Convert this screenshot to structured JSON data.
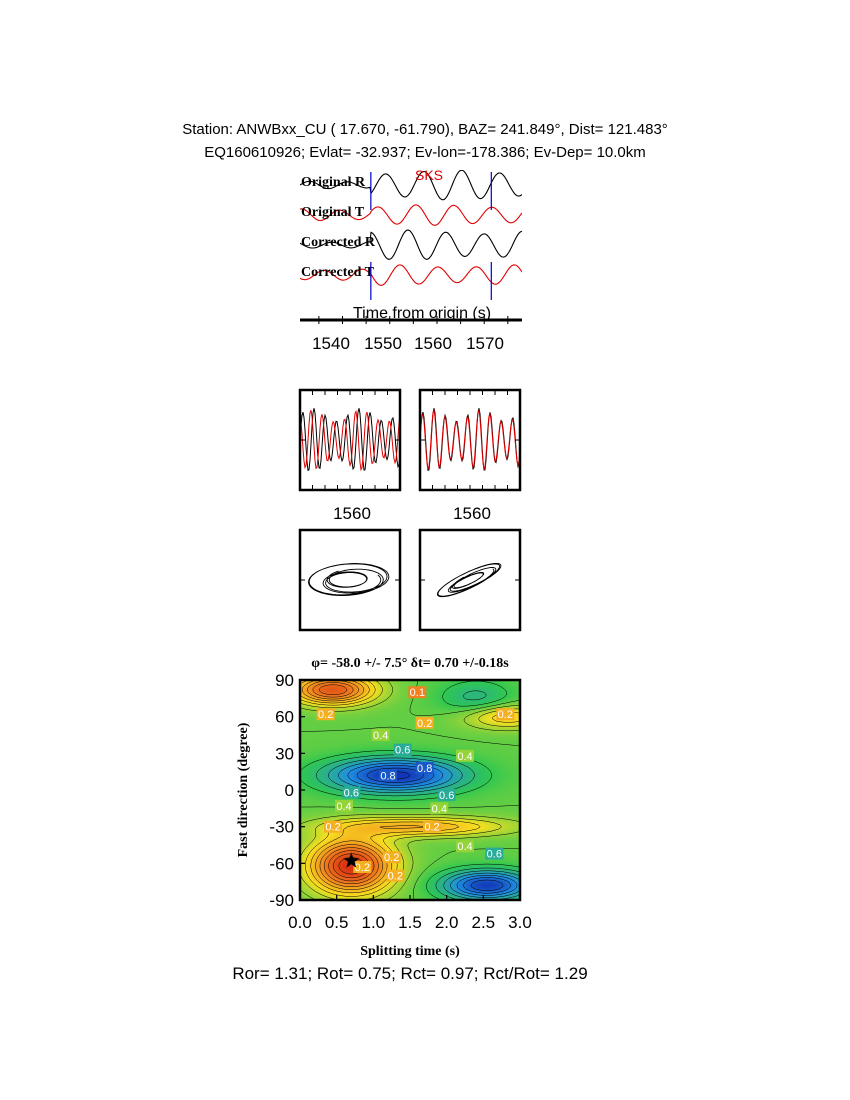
{
  "header": {
    "line1": "Station: ANWBxx_CU (  17.670,  -61.790), BAZ=  241.849°, Dist=  121.483°",
    "line2": "EQ160610926; Evlat= -32.937; Ev-lon=-178.386; Ev-Dep= 10.0km"
  },
  "traces": {
    "labels": [
      "Original R",
      "Original T",
      "Corrected R",
      "Corrected T"
    ],
    "phase_label": "SKS",
    "xlabel": "Time from origin (s)",
    "ticks": [
      1540,
      1550,
      1560,
      1570
    ],
    "xlim": [
      1531,
      1578
    ],
    "window_start": 1546,
    "window_end": 1571.5,
    "colors": {
      "radial": "#000000",
      "transverse": "#e00000",
      "marker": "#0000cc"
    }
  },
  "waveform_panels": {
    "tick_label": "1560"
  },
  "summary": "Ror= 1.31; Rot= 0.75; Rct= 0.97; Rct/Rot= 1.29",
  "chart_data": {
    "type": "heatmap",
    "title": "φ= -58.0 +/- 7.5° δt= 0.70 +/-0.18s",
    "xlabel": "Splitting time (s)",
    "ylabel": "Fast direction (degree)",
    "xlim": [
      0.0,
      3.0
    ],
    "ylim": [
      -90,
      90
    ],
    "xticks": [
      "0.0",
      "0.5",
      "1.0",
      "1.5",
      "2.0",
      "2.5",
      "3.0"
    ],
    "yticks": [
      "90",
      "60",
      "30",
      "0",
      "-30",
      "-60",
      "-90"
    ],
    "best": {
      "phi": -58.0,
      "phi_err": 7.5,
      "dt": 0.7,
      "dt_err": 0.18
    },
    "contour_labels": [
      {
        "text": "0.2",
        "dt": 0.35,
        "phi": 62
      },
      {
        "text": "0.2",
        "dt": 1.7,
        "phi": 55
      },
      {
        "text": "0.2",
        "dt": 2.8,
        "phi": 62
      },
      {
        "text": "0.2",
        "dt": 0.45,
        "phi": -30
      },
      {
        "text": "0.2",
        "dt": 1.8,
        "phi": -30
      },
      {
        "text": "0.2",
        "dt": 1.25,
        "phi": -55
      },
      {
        "text": "0.2",
        "dt": 0.85,
        "phi": -63
      },
      {
        "text": "0.2",
        "dt": 1.3,
        "phi": -70
      },
      {
        "text": "0.4",
        "dt": 1.1,
        "phi": 45
      },
      {
        "text": "0.4",
        "dt": 2.25,
        "phi": 28
      },
      {
        "text": "0.4",
        "dt": 0.6,
        "phi": -13
      },
      {
        "text": "0.4",
        "dt": 1.9,
        "phi": -15
      },
      {
        "text": "0.4",
        "dt": 2.25,
        "phi": -46
      },
      {
        "text": "0.6",
        "dt": 1.4,
        "phi": 33
      },
      {
        "text": "0.6",
        "dt": 0.7,
        "phi": -2
      },
      {
        "text": "0.6",
        "dt": 2.0,
        "phi": -4
      },
      {
        "text": "0.6",
        "dt": 2.65,
        "phi": -52
      },
      {
        "text": "0.8",
        "dt": 1.2,
        "phi": 12
      },
      {
        "text": "0.8",
        "dt": 1.7,
        "phi": 18
      },
      {
        "text": "0.1",
        "dt": 1.6,
        "phi": 80
      }
    ],
    "colormap": [
      "#d83010",
      "#f08020",
      "#f8e020",
      "#30c850",
      "#2090e0",
      "#1020b0"
    ]
  }
}
